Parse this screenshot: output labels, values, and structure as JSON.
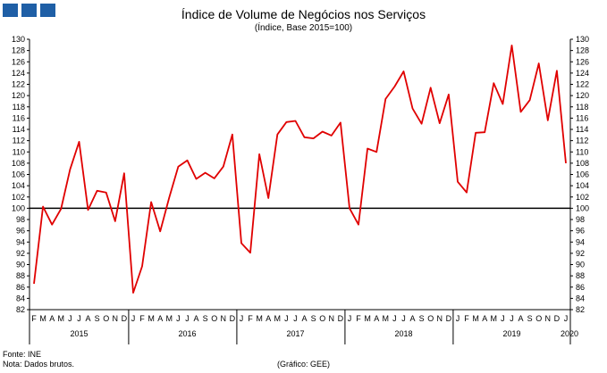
{
  "header": {
    "title": "Índice de Volume de Negócios nos Serviços",
    "subtitle": "(Índice, Base 2015=100)"
  },
  "footer": {
    "source": "Fonte: INE",
    "note": "Nota: Dados brutos.",
    "credit": "(Gráfico: GEE)"
  },
  "colors": {
    "logo": "#1f5fa6",
    "series": "#e00000",
    "baseline": "#000000",
    "axis": "#000000"
  },
  "chart_data": {
    "type": "line",
    "title": "Índice de Volume de Negócios nos Serviços",
    "subtitle": "(Índice, Base 2015=100)",
    "ylim": [
      82,
      130
    ],
    "ytick_step": 2,
    "reference_line": 100,
    "grid": false,
    "month_labels": [
      "F",
      "M",
      "A",
      "M",
      "J",
      "J",
      "A",
      "S",
      "O",
      "N",
      "D",
      "J",
      "F",
      "M",
      "A",
      "M",
      "J",
      "J",
      "A",
      "S",
      "O",
      "N",
      "D",
      "J",
      "F",
      "M",
      "A",
      "M",
      "J",
      "J",
      "A",
      "S",
      "O",
      "N",
      "D",
      "J",
      "F",
      "M",
      "A",
      "M",
      "J",
      "J",
      "A",
      "S",
      "O",
      "N",
      "D",
      "J",
      "F",
      "M",
      "A",
      "M",
      "J",
      "J",
      "A",
      "S",
      "O",
      "N",
      "D",
      "J"
    ],
    "year_labels": [
      {
        "label": "2015",
        "index": 5
      },
      {
        "label": "2016",
        "index": 17
      },
      {
        "label": "2017",
        "index": 29
      },
      {
        "label": "2018",
        "index": 41
      },
      {
        "label": "2019",
        "index": 53
      },
      {
        "label": "2020",
        "index": 59.5
      }
    ],
    "year_separators": [
      10.5,
      22.5,
      34.5,
      46.5
    ],
    "series": [
      {
        "values": [
          86.6,
          100.3,
          97.1,
          99.9,
          106.9,
          111.8,
          99.7,
          103.1,
          102.8,
          97.7,
          106.2,
          85.0,
          89.7,
          101.1,
          95.9,
          101.9,
          107.4,
          108.5,
          105.2,
          106.3,
          105.3,
          107.4,
          113.1,
          93.8,
          92.1,
          109.6,
          101.8,
          113.1,
          115.3,
          115.5,
          112.6,
          112.4,
          113.6,
          112.9,
          115.2,
          100.0,
          97.1,
          110.6,
          110.0,
          119.4,
          121.6,
          124.3,
          117.7,
          115.0,
          121.4,
          115.1,
          120.2,
          104.7,
          102.8,
          113.4,
          113.5,
          122.2,
          118.5,
          128.9,
          117.1,
          119.2,
          125.7,
          115.6,
          124.4,
          108.0
        ]
      }
    ]
  }
}
